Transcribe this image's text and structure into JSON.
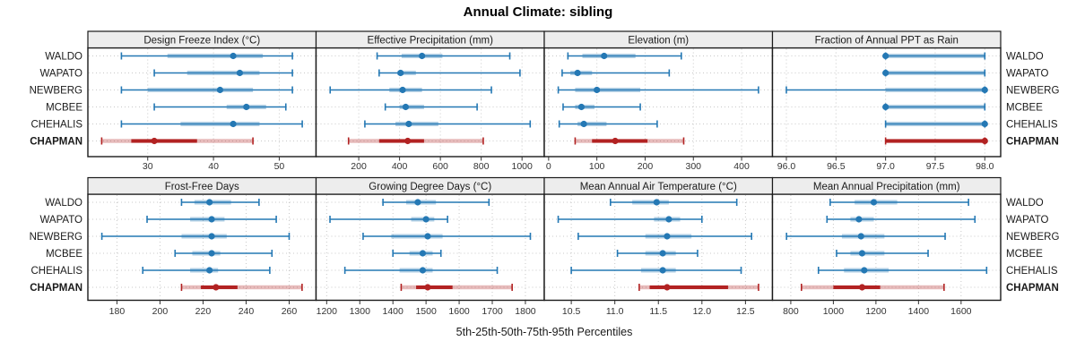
{
  "title": "Annual Climate: sibling",
  "caption": "5th-25th-50th-75th-95th Percentiles",
  "colors": {
    "site_blue": "#2478b4",
    "highlight_red": "#b22222",
    "strip_bg": "#ededed",
    "panel_border": "#1a1a1a",
    "grid": "#c8c8c8",
    "tick_text": "#333333",
    "label_text": "#1a1a1a"
  },
  "chart_data": {
    "type": "multi-panel-dotplot",
    "percentile_levels": [
      5,
      25,
      50,
      75,
      95
    ],
    "sites": [
      {
        "name": "WALDO",
        "highlight": false
      },
      {
        "name": "WAPATO",
        "highlight": false
      },
      {
        "name": "NEWBERG",
        "highlight": false
      },
      {
        "name": "MCBEE",
        "highlight": false
      },
      {
        "name": "CHEHALIS",
        "highlight": false
      },
      {
        "name": "CHAPMAN",
        "highlight": true
      }
    ],
    "panels": [
      {
        "title": "Design Freeze Index (°C)",
        "row": 0,
        "col": 0,
        "xlim": [
          20.9,
          55.6
        ],
        "ticks": [
          30,
          40,
          50
        ],
        "tick_labels": [
          "30",
          "40",
          "50"
        ],
        "series": [
          {
            "name": "WALDO",
            "percentiles": [
              26,
              33,
              43,
              47.5,
              52
            ]
          },
          {
            "name": "WAPATO",
            "percentiles": [
              31,
              36,
              44,
              47,
              52
            ]
          },
          {
            "name": "NEWBERG",
            "percentiles": [
              26,
              30,
              41,
              46,
              52
            ]
          },
          {
            "name": "MCBEE",
            "percentiles": [
              31,
              42,
              45,
              48,
              51
            ]
          },
          {
            "name": "CHEHALIS",
            "percentiles": [
              26,
              35,
              43,
              47,
              53.5
            ]
          },
          {
            "name": "CHAPMAN",
            "percentiles": [
              23,
              27.5,
              31,
              37.5,
              46
            ]
          }
        ]
      },
      {
        "title": "Effective Precipitation (mm)",
        "row": 0,
        "col": 1,
        "xlim": [
          -9,
          1109
        ],
        "ticks": [
          200,
          400,
          600,
          800,
          1000
        ],
        "tick_labels": [
          "200",
          "400",
          "600",
          "800",
          "1000"
        ],
        "series": [
          {
            "name": "WALDO",
            "percentiles": [
              290,
              410,
              510,
              610,
              940
            ]
          },
          {
            "name": "WAPATO",
            "percentiles": [
              300,
              390,
              405,
              480,
              990
            ]
          },
          {
            "name": "NEWBERG",
            "percentiles": [
              60,
              350,
              415,
              510,
              850
            ]
          },
          {
            "name": "MCBEE",
            "percentiles": [
              330,
              400,
              430,
              520,
              780
            ]
          },
          {
            "name": "CHEHALIS",
            "percentiles": [
              230,
              380,
              445,
              590,
              1040
            ]
          },
          {
            "name": "CHAPMAN",
            "percentiles": [
              150,
              300,
              440,
              520,
              810
            ]
          }
        ]
      },
      {
        "title": "Elevation (m)",
        "row": 0,
        "col": 2,
        "xlim": [
          -9,
          464
        ],
        "ticks": [
          0,
          100,
          200,
          300,
          400
        ],
        "tick_labels": [
          "0",
          "100",
          "200",
          "300",
          "400"
        ],
        "series": [
          {
            "name": "WALDO",
            "percentiles": [
              40,
              70,
              115,
              180,
              275
            ]
          },
          {
            "name": "WAPATO",
            "percentiles": [
              28,
              45,
              60,
              90,
              250
            ]
          },
          {
            "name": "NEWBERG",
            "percentiles": [
              20,
              55,
              100,
              190,
              435
            ]
          },
          {
            "name": "MCBEE",
            "percentiles": [
              30,
              55,
              68,
              95,
              190
            ]
          },
          {
            "name": "CHEHALIS",
            "percentiles": [
              22,
              60,
              73,
              120,
              225
            ]
          },
          {
            "name": "CHAPMAN",
            "percentiles": [
              55,
              90,
              138,
              205,
              280
            ]
          }
        ]
      },
      {
        "title": "Fraction of Annual PPT as Rain",
        "row": 0,
        "col": 3,
        "xlim": [
          95.86,
          98.16
        ],
        "ticks": [
          96.0,
          96.5,
          97.0,
          97.5,
          98.0
        ],
        "tick_labels": [
          "96.0",
          "96.5",
          "97.0",
          "97.5",
          "98.0"
        ],
        "series": [
          {
            "name": "WALDO",
            "percentiles": [
              97,
              97,
              97,
              98,
              98
            ]
          },
          {
            "name": "WAPATO",
            "percentiles": [
              97,
              97,
              97,
              98,
              98
            ]
          },
          {
            "name": "NEWBERG",
            "percentiles": [
              96,
              97,
              98,
              98,
              98
            ]
          },
          {
            "name": "MCBEE",
            "percentiles": [
              97,
              97,
              97,
              98,
              98
            ]
          },
          {
            "name": "CHEHALIS",
            "percentiles": [
              97,
              97,
              98,
              98,
              98
            ]
          },
          {
            "name": "CHAPMAN",
            "percentiles": [
              97,
              97,
              98,
              98,
              98
            ]
          }
        ]
      },
      {
        "title": "Frost-Free Days",
        "row": 1,
        "col": 0,
        "xlim": [
          166.5,
          272.5
        ],
        "ticks": [
          180,
          200,
          220,
          240,
          260
        ],
        "tick_labels": [
          "180",
          "200",
          "220",
          "240",
          "260"
        ],
        "series": [
          {
            "name": "WALDO",
            "percentiles": [
              210,
              216,
              223,
              233,
              246
            ]
          },
          {
            "name": "WAPATO",
            "percentiles": [
              194,
              214,
              224,
              230,
              254
            ]
          },
          {
            "name": "NEWBERG",
            "percentiles": [
              173,
              210,
              224,
              231,
              260
            ]
          },
          {
            "name": "MCBEE",
            "percentiles": [
              207,
              215,
              224,
              228,
              252
            ]
          },
          {
            "name": "CHEHALIS",
            "percentiles": [
              192,
              214,
              223,
              227,
              251
            ]
          },
          {
            "name": "CHAPMAN",
            "percentiles": [
              210,
              219,
              226,
              236,
              266
            ]
          }
        ]
      },
      {
        "title": "Growing Degree Days (°C)",
        "row": 1,
        "col": 1,
        "xlim": [
          1168,
          1857
        ],
        "ticks": [
          1200,
          1300,
          1400,
          1500,
          1600,
          1700,
          1800
        ],
        "tick_labels": [
          "1200",
          "1300",
          "1400",
          "1500",
          "1600",
          "1700",
          "1800"
        ],
        "series": [
          {
            "name": "WALDO",
            "percentiles": [
              1370,
              1440,
              1475,
              1530,
              1690
            ]
          },
          {
            "name": "WAPATO",
            "percentiles": [
              1210,
              1455,
              1500,
              1525,
              1565
            ]
          },
          {
            "name": "NEWBERG",
            "percentiles": [
              1310,
              1395,
              1505,
              1550,
              1815
            ]
          },
          {
            "name": "MCBEE",
            "percentiles": [
              1400,
              1450,
              1490,
              1520,
              1545
            ]
          },
          {
            "name": "CHEHALIS",
            "percentiles": [
              1255,
              1420,
              1490,
              1520,
              1715
            ]
          },
          {
            "name": "CHAPMAN",
            "percentiles": [
              1425,
              1470,
              1505,
              1580,
              1760
            ]
          }
        ]
      },
      {
        "title": "Mean Annual Air Temperature (°C)",
        "row": 1,
        "col": 2,
        "xlim": [
          10.19,
          12.81
        ],
        "ticks": [
          10.5,
          11.0,
          11.5,
          12.0,
          12.5
        ],
        "tick_labels": [
          "10.5",
          "11.0",
          "11.5",
          "12.0",
          "12.5"
        ],
        "series": [
          {
            "name": "WALDO",
            "percentiles": [
              10.95,
              11.2,
              11.48,
              11.62,
              12.4
            ]
          },
          {
            "name": "WAPATO",
            "percentiles": [
              10.35,
              11.45,
              11.62,
              11.75,
              12.0
            ]
          },
          {
            "name": "NEWBERG",
            "percentiles": [
              10.58,
              11.35,
              11.6,
              11.88,
              12.57
            ]
          },
          {
            "name": "MCBEE",
            "percentiles": [
              11.03,
              11.35,
              11.55,
              11.7,
              11.95
            ]
          },
          {
            "name": "CHEHALIS",
            "percentiles": [
              10.5,
              11.3,
              11.55,
              11.7,
              12.45
            ]
          },
          {
            "name": "CHAPMAN",
            "percentiles": [
              11.28,
              11.4,
              11.6,
              12.3,
              12.65
            ]
          }
        ]
      },
      {
        "title": "Mean Annual Precipitation (mm)",
        "row": 1,
        "col": 3,
        "xlim": [
          714,
          1786
        ],
        "ticks": [
          800,
          1000,
          1200,
          1400,
          1600
        ],
        "tick_labels": [
          "800",
          "1000",
          "1200",
          "1400",
          "1600"
        ],
        "series": [
          {
            "name": "WALDO",
            "percentiles": [
              985,
              1100,
              1190,
              1300,
              1635
            ]
          },
          {
            "name": "WAPATO",
            "percentiles": [
              970,
              1080,
              1120,
              1190,
              1665
            ]
          },
          {
            "name": "NEWBERG",
            "percentiles": [
              780,
              1040,
              1130,
              1240,
              1525
            ]
          },
          {
            "name": "MCBEE",
            "percentiles": [
              1015,
              1080,
              1135,
              1240,
              1445
            ]
          },
          {
            "name": "CHEHALIS",
            "percentiles": [
              930,
              1050,
              1145,
              1260,
              1720
            ]
          },
          {
            "name": "CHAPMAN",
            "percentiles": [
              850,
              1000,
              1135,
              1220,
              1520
            ]
          }
        ]
      }
    ]
  }
}
